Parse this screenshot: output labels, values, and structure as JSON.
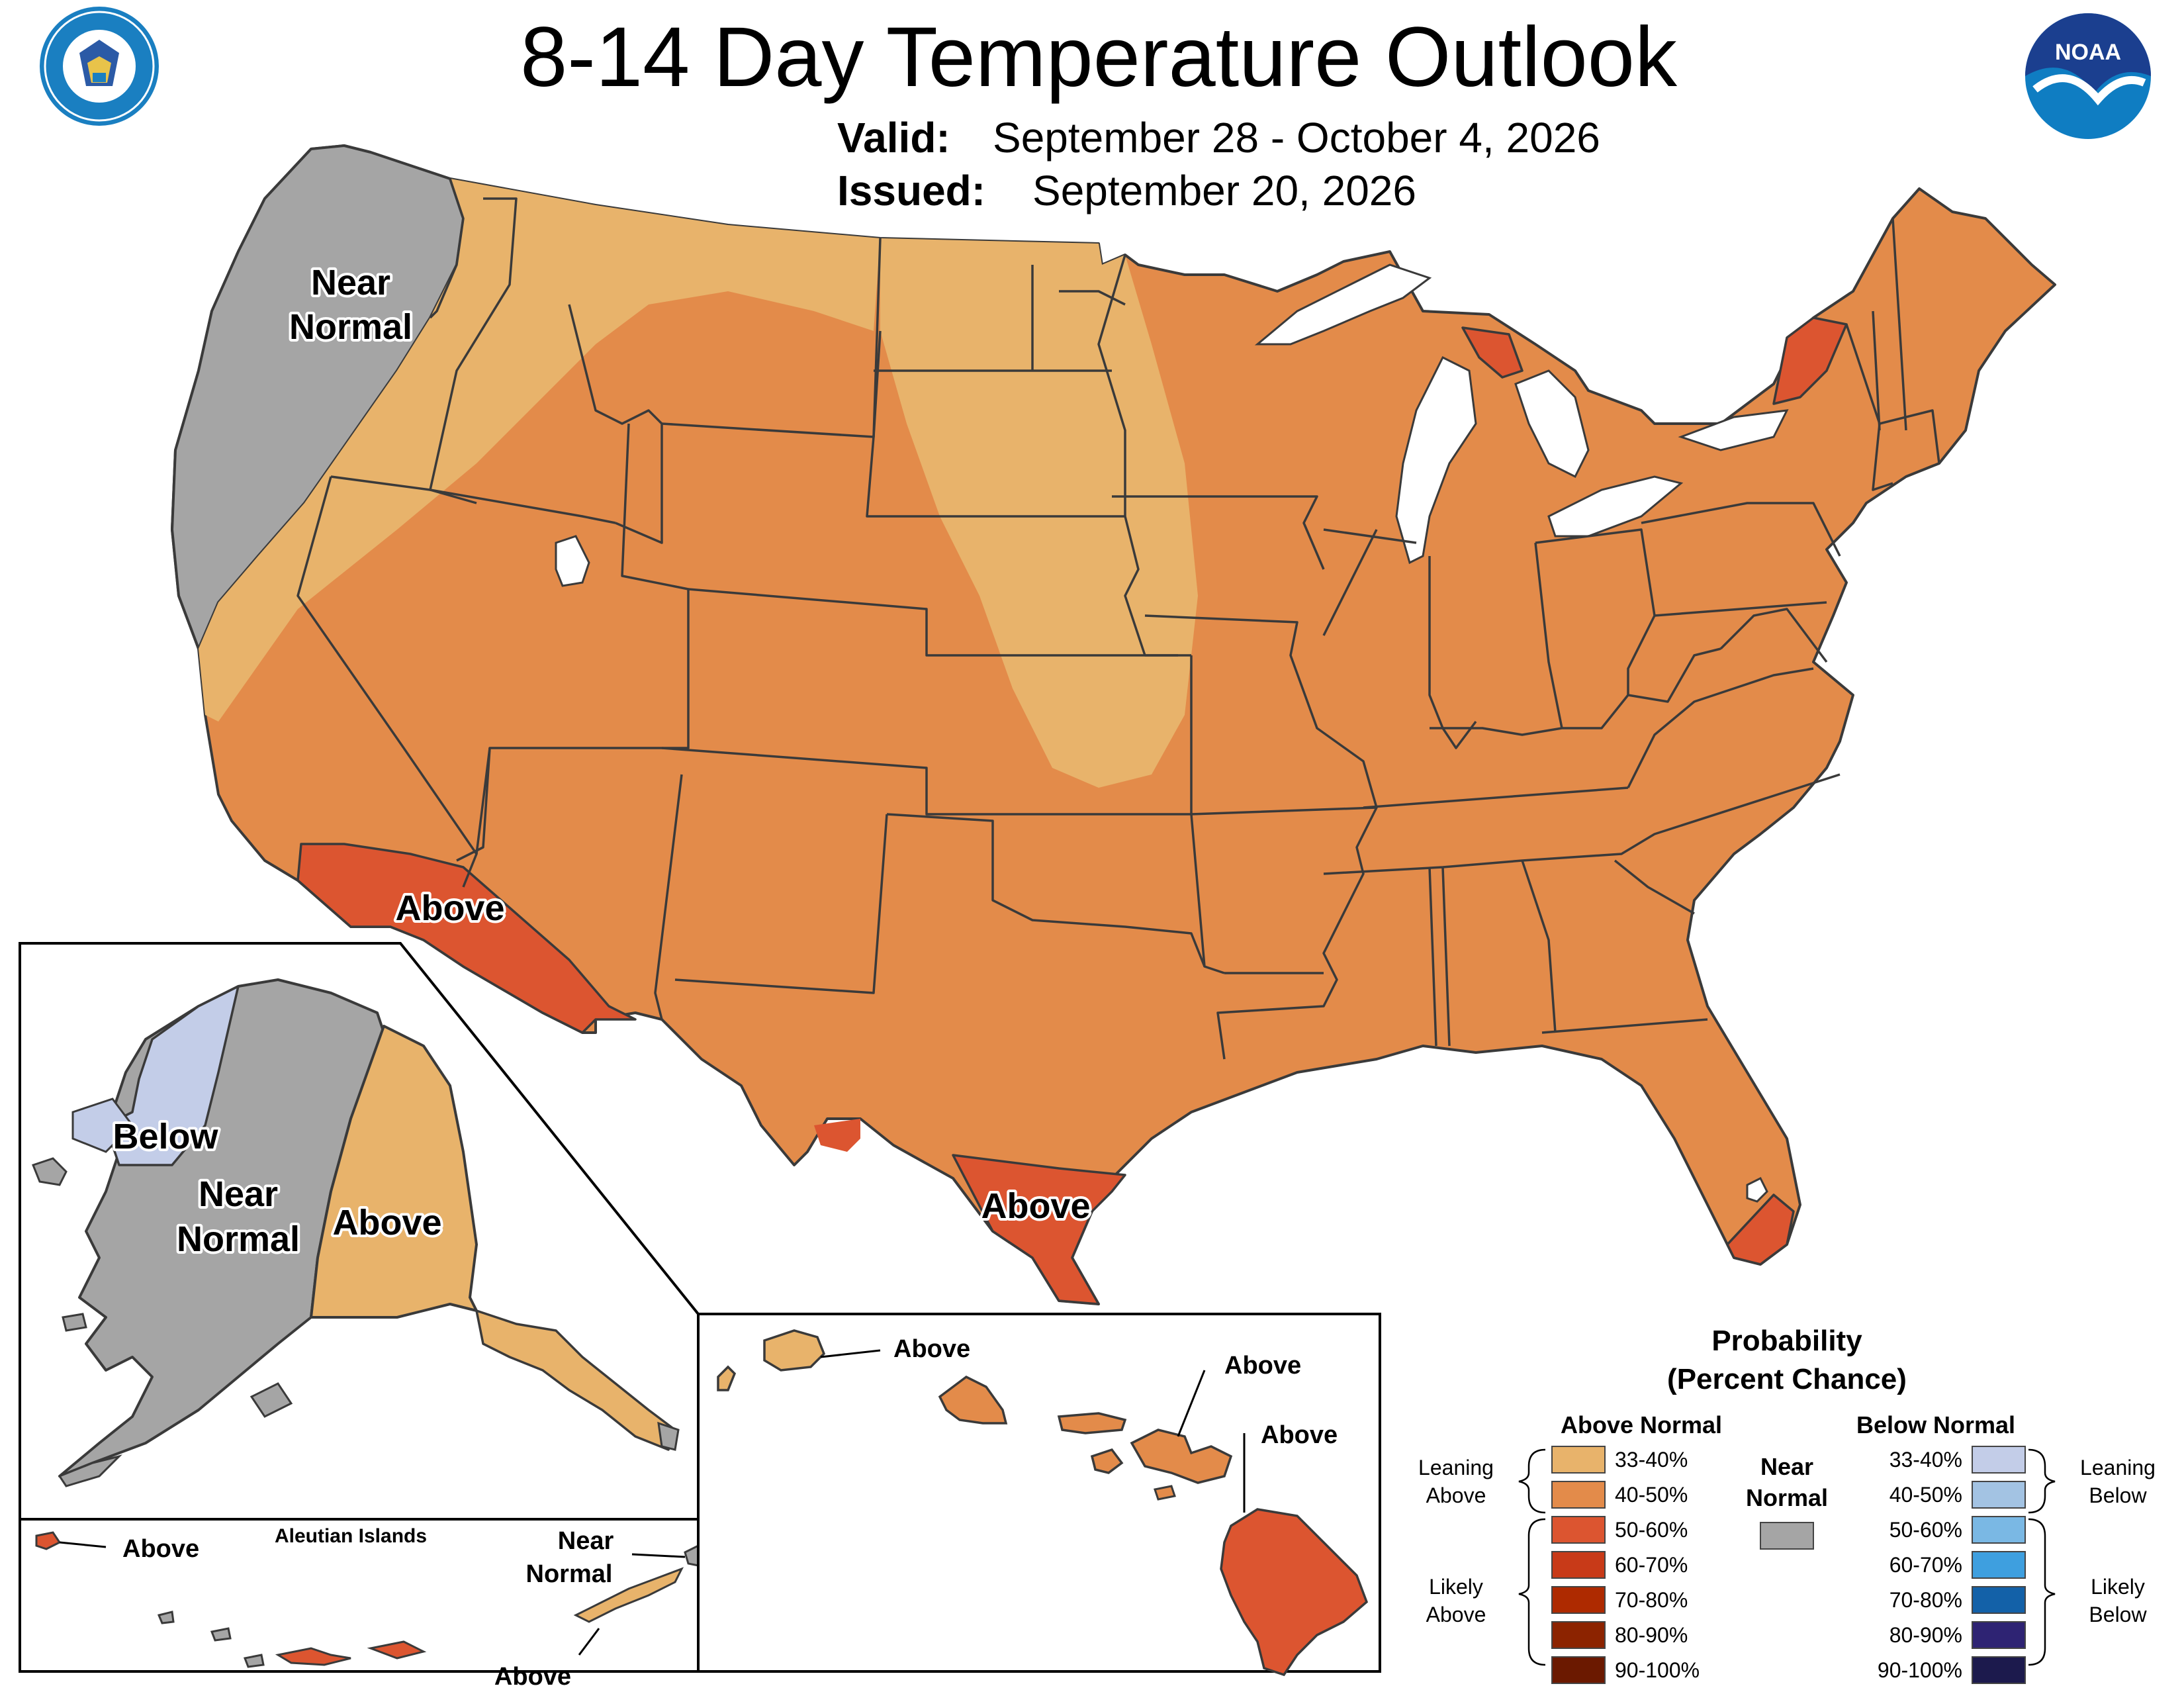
{
  "title": "8-14 Day Temperature Outlook",
  "valid_label": "Valid:",
  "valid_value": "September 28 - October 4, 2026",
  "issued_label": "Issued:",
  "issued_value": "September 20, 2026",
  "logos": {
    "left": "department-of-commerce-seal",
    "right_text": "NOAA"
  },
  "map_labels": {
    "conus_near_normal": [
      "Near",
      "Normal"
    ],
    "conus_above_socal": "Above",
    "conus_above_texas": "Above",
    "alaska_below": "Below",
    "alaska_near_normal": [
      "Near",
      "Normal"
    ],
    "alaska_above": "Above",
    "aleutian_title": "Aleutian Islands",
    "aleutian_above_left": "Above",
    "aleutian_near_normal": [
      "Near",
      "Normal"
    ],
    "aleutian_above_bottom": "Above",
    "hawaii_above_kauai": "Above",
    "hawaii_above_maui": "Above",
    "hawaii_above_big_island": "Above"
  },
  "legend": {
    "title": [
      "Probability",
      "(Percent Chance)"
    ],
    "above_header": "Above Normal",
    "below_header": "Below Normal",
    "near_normal": [
      "Near",
      "Normal"
    ],
    "near_normal_color": "#a5a5a5",
    "leaning_above": [
      "Leaning",
      "Above"
    ],
    "likely_above": [
      "Likely",
      "Above"
    ],
    "leaning_below": [
      "Leaning",
      "Below"
    ],
    "likely_below": [
      "Likely",
      "Below"
    ],
    "above": [
      {
        "label": "33-40%",
        "color": "#e8b36b"
      },
      {
        "label": "40-50%",
        "color": "#e38b4a"
      },
      {
        "label": "50-60%",
        "color": "#dc5530"
      },
      {
        "label": "60-70%",
        "color": "#c83a18"
      },
      {
        "label": "70-80%",
        "color": "#ae2a00"
      },
      {
        "label": "80-90%",
        "color": "#8c2300"
      },
      {
        "label": "90-100%",
        "color": "#6b1900"
      }
    ],
    "below": [
      {
        "label": "33-40%",
        "color": "#c3cde8"
      },
      {
        "label": "40-50%",
        "color": "#a3c3e3"
      },
      {
        "label": "50-60%",
        "color": "#7ab8e4"
      },
      {
        "label": "60-70%",
        "color": "#3e9fdf"
      },
      {
        "label": "70-80%",
        "color": "#1361a8"
      },
      {
        "label": "80-90%",
        "color": "#2e2373"
      },
      {
        "label": "90-100%",
        "color": "#1c1a4d"
      }
    ]
  }
}
